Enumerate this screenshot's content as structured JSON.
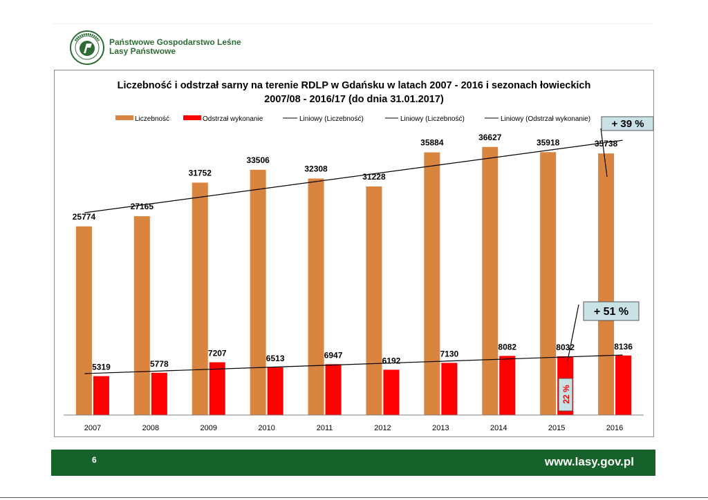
{
  "header": {
    "org_line1": "Państwowe Gospodarstwo Leśne",
    "org_line2": "Lasy Państwowe",
    "logo_text": "LASY PAŃSTWOWE"
  },
  "chart_data": {
    "type": "bar",
    "title_line1": "Liczebność i odstrzał sarny na terenie RDLP w Gdańsku w latach 2007 - 2016 i sezonach łowieckich",
    "title_line2": "2007/08 - 2016/17 (do dnia 31.01.2017)",
    "categories": [
      "2007",
      "2008",
      "2009",
      "2010",
      "2011",
      "2012",
      "2013",
      "2014",
      "2015",
      "2016"
    ],
    "ylim": [
      0,
      40000
    ],
    "grid": false,
    "legend_position": "top",
    "series": [
      {
        "name": "Liczebność",
        "color": "#d9843f",
        "values": [
          25774,
          27165,
          31752,
          33506,
          32308,
          31228,
          35884,
          36627,
          35918,
          35738
        ]
      },
      {
        "name": "Odstrzał wykonanie",
        "color": "#ff0000",
        "values": [
          5319,
          5778,
          7207,
          6513,
          6947,
          6192,
          7130,
          8082,
          8032,
          8136
        ]
      }
    ],
    "trendlines": [
      "Liniowy (Liczebność)",
      "Liniowy (Liczebność)",
      "Liniowy (Odstrzał wykonanie)"
    ],
    "annotations": {
      "count_change": "+ 39 %",
      "cull_change": "+ 51 %",
      "cull_share_2015": "22 %",
      "callout_color": "#c9e2e6"
    }
  },
  "footer": {
    "page_number": "6",
    "url": "www.lasy.gov.pl"
  }
}
